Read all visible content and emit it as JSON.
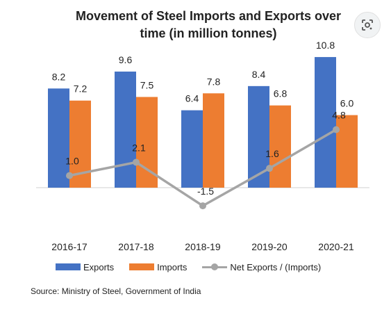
{
  "chart_data": {
    "type": "bar",
    "title_line1": "Movement of Steel Imports and Exports over",
    "title_line2": "time (in million tonnes)",
    "categories": [
      "2016-17",
      "2017-18",
      "2018-19",
      "2019-20",
      "2020-21"
    ],
    "series": [
      {
        "name": "Exports",
        "type": "bar",
        "color": "#4472c4",
        "values": [
          8.2,
          9.6,
          6.4,
          8.4,
          10.8
        ]
      },
      {
        "name": "Imports",
        "type": "bar",
        "color": "#ed7d31",
        "values": [
          7.2,
          7.5,
          7.8,
          6.8,
          6.0
        ]
      },
      {
        "name": "Net Exports / (Imports)",
        "type": "line",
        "color": "#a5a5a5",
        "values": [
          1.0,
          2.1,
          -1.5,
          1.6,
          4.8
        ]
      }
    ],
    "value_labels": {
      "exports": [
        "8.2",
        "9.6",
        "6.4",
        "8.4",
        "10.8"
      ],
      "imports": [
        "7.2",
        "7.5",
        "7.8",
        "6.8",
        "6.0"
      ],
      "net": [
        "1.0",
        "2.1",
        "-1.5",
        "1.6",
        "4.8"
      ]
    },
    "ylim": [
      -1.5,
      10.8
    ],
    "grid": false,
    "legend_position": "bottom"
  },
  "legend": {
    "exports": "Exports",
    "imports": "Imports",
    "net": "Net Exports / (Imports)"
  },
  "source": "Source: Ministry of Steel, Government of India",
  "icons": {
    "lens": "google-lens-icon"
  }
}
